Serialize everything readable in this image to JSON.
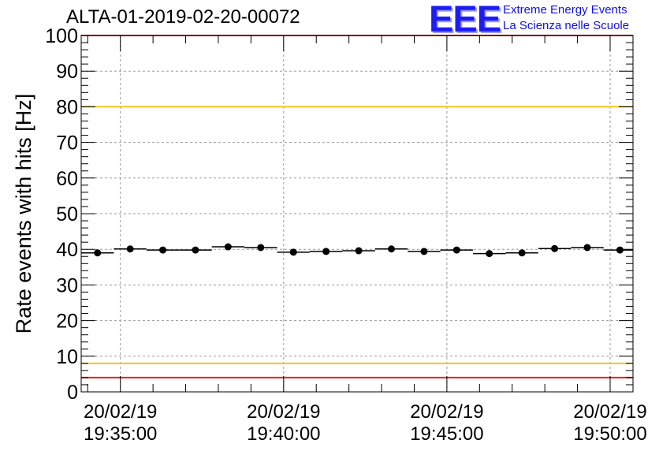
{
  "chart_data": {
    "type": "scatter",
    "title": "ALTA-01-2019-02-20-00072",
    "ylabel": "Rate events with hits [Hz]",
    "xlabel": "",
    "ylim": [
      0,
      100
    ],
    "yticks": [
      0,
      10,
      20,
      30,
      40,
      50,
      60,
      70,
      80,
      90,
      100
    ],
    "x_time_ticks": [
      {
        "date": "20/02/19",
        "time": "19:35:00"
      },
      {
        "date": "20/02/19",
        "time": "19:40:00"
      },
      {
        "date": "20/02/19",
        "time": "19:45:00"
      },
      {
        "date": "20/02/19",
        "time": "19:50:00"
      }
    ],
    "x_range_minutes_from_1935": [
      -1.2,
      15.7
    ],
    "bin_width_minutes": 1,
    "points": [
      {
        "x": -0.7,
        "y": 39.0
      },
      {
        "x": 0.3,
        "y": 40.1
      },
      {
        "x": 1.3,
        "y": 39.8
      },
      {
        "x": 2.3,
        "y": 39.8
      },
      {
        "x": 3.3,
        "y": 40.7
      },
      {
        "x": 4.3,
        "y": 40.5
      },
      {
        "x": 5.3,
        "y": 39.2
      },
      {
        "x": 6.3,
        "y": 39.4
      },
      {
        "x": 7.3,
        "y": 39.6
      },
      {
        "x": 8.3,
        "y": 40.1
      },
      {
        "x": 9.3,
        "y": 39.4
      },
      {
        "x": 10.3,
        "y": 39.8
      },
      {
        "x": 11.3,
        "y": 38.8
      },
      {
        "x": 12.3,
        "y": 39.0
      },
      {
        "x": 13.3,
        "y": 40.2
      },
      {
        "x": 14.3,
        "y": 40.5
      },
      {
        "x": 15.3,
        "y": 39.8
      }
    ],
    "threshold_lines": [
      {
        "y": 100,
        "color": "#e8201c"
      },
      {
        "y": 80,
        "color": "#f2c619"
      },
      {
        "y": 8,
        "color": "#f2c619"
      },
      {
        "y": 4,
        "color": "#e8201c"
      }
    ],
    "grid": true,
    "marker_color": "#000000"
  },
  "logo": {
    "mark": "EEE",
    "line1": "Extreme Energy Events",
    "line2": "La Scienza nelle Scuole"
  }
}
